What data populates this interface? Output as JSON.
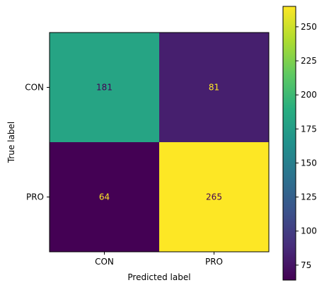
{
  "chart_data": {
    "type": "heatmap",
    "title": "",
    "xlabel": "Predicted label",
    "ylabel": "True label",
    "x_categories": [
      "CON",
      "PRO"
    ],
    "y_categories": [
      "CON",
      "PRO"
    ],
    "values": [
      [
        181,
        81
      ],
      [
        64,
        265
      ]
    ],
    "colormap": "viridis",
    "text_color_dark_cells": "#fde725",
    "text_color_light_cells": "#440154",
    "colorbar": {
      "range": [
        64,
        265
      ],
      "ticks": [
        75,
        100,
        125,
        150,
        175,
        200,
        225,
        250
      ]
    }
  }
}
